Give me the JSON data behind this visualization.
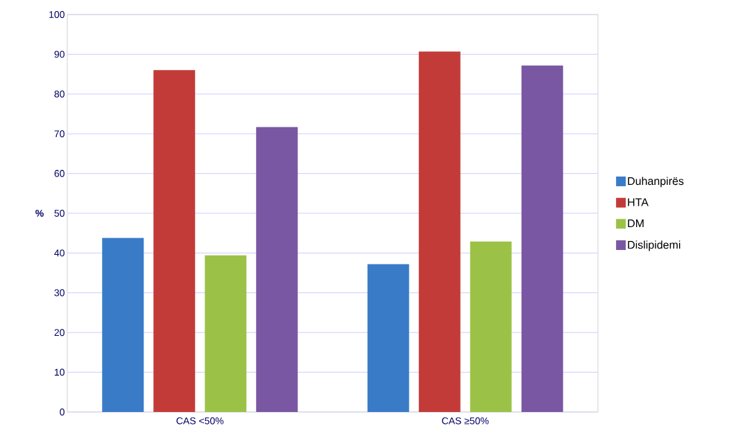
{
  "chart_data": {
    "type": "bar",
    "ylabel": "%",
    "categories": [
      "CAS <50%",
      "CAS ≥50%"
    ],
    "series": [
      {
        "name": "Duhanpirës",
        "color": "#3a7bc8",
        "values": [
          43.8,
          37.2
        ]
      },
      {
        "name": "HTA",
        "color": "#c33b38",
        "values": [
          86.0,
          90.7
        ]
      },
      {
        "name": "DM",
        "color": "#9bc246",
        "values": [
          39.4,
          42.9
        ]
      },
      {
        "name": "Dislipidemi",
        "color": "#7a57a3",
        "values": [
          71.7,
          87.2
        ]
      }
    ],
    "ylim": [
      0,
      100
    ],
    "yticks": [
      0,
      10,
      20,
      30,
      40,
      50,
      60,
      70,
      80,
      90,
      100
    ],
    "grid": "y",
    "legend": "right"
  }
}
